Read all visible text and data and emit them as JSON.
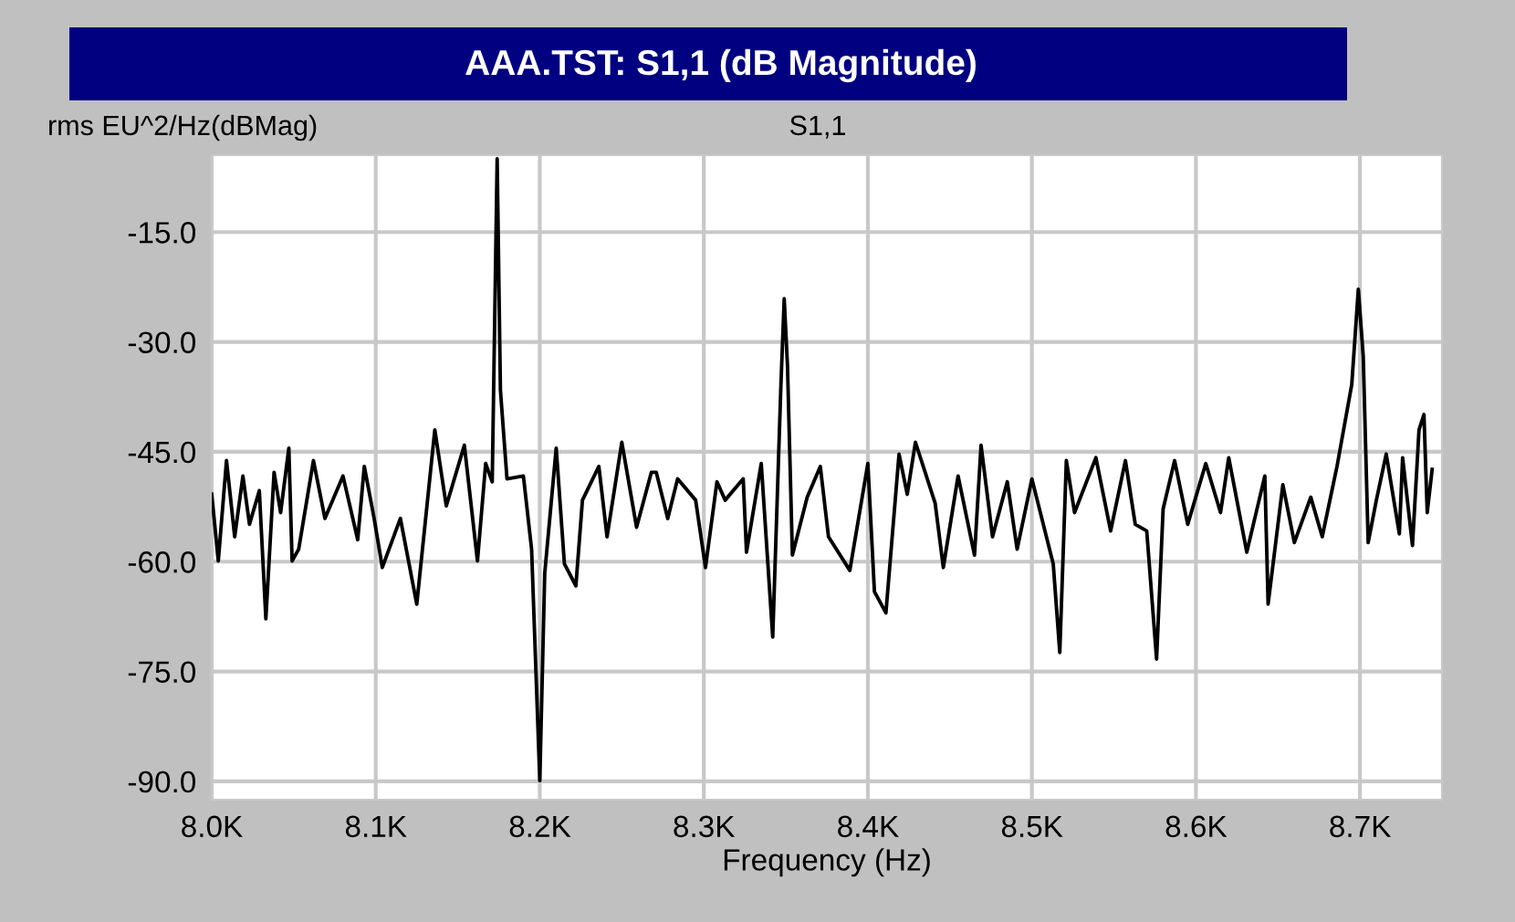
{
  "chart_data": {
    "type": "line",
    "title": "AAA.TST: S1,1 (dB Magnitude)",
    "subtitle": "S1,1",
    "ylabel": "rms EU^2/Hz(dBMag)",
    "xlabel": "Frequency (Hz)",
    "x": [
      8000,
      8004,
      8009,
      8014,
      8019,
      8023,
      8029,
      8033,
      8038,
      8042,
      8047,
      8049,
      8053,
      8062,
      8069,
      8080,
      8089,
      8093,
      8099,
      8104,
      8115,
      8125,
      8136,
      8143,
      8154,
      8162,
      8167,
      8171,
      8174,
      8176,
      8180,
      8190,
      8195,
      8200,
      8203,
      8210,
      8215,
      8222,
      8226,
      8236,
      8241,
      8250,
      8259,
      8268,
      8271,
      8278,
      8284,
      8295,
      8301,
      8308,
      8313,
      8324,
      8326,
      8335,
      8342,
      8347,
      8349,
      8351,
      8354,
      8363,
      8371,
      8376,
      8389,
      8400,
      8404,
      8411,
      8419,
      8424,
      8429,
      8441,
      8446,
      8455,
      8465,
      8469,
      8476,
      8485,
      8491,
      8500,
      8513,
      8517,
      8521,
      8526,
      8539,
      8548,
      8557,
      8563,
      8570,
      8576,
      8580,
      8587,
      8595,
      8606,
      8615,
      8620,
      8631,
      8642,
      8644,
      8653,
      8660,
      8670,
      8677,
      8686,
      8695,
      8699,
      8702,
      8705,
      8710,
      8716,
      8724,
      8726,
      8732,
      8736,
      8739,
      8741,
      8744
    ],
    "series": [
      {
        "color": "#000000",
        "values": [
          -50.8,
          -59.9,
          -46.2,
          -56.6,
          -48.3,
          -54.9,
          -50.3,
          -67.8,
          -47.8,
          -53.3,
          -44.5,
          -59.9,
          -58.3,
          -46.2,
          -54.1,
          -48.3,
          -57,
          -47,
          -54.1,
          -60.8,
          -54.1,
          -65.8,
          -42,
          -52.4,
          -44.1,
          -59.9,
          -46.6,
          -49.1,
          -5,
          -36.6,
          -48.7,
          -48.3,
          -58.3,
          -89.9,
          -61.6,
          -44.5,
          -60.3,
          -63.3,
          -51.6,
          -47,
          -56.6,
          -43.7,
          -55.3,
          -47.8,
          -47.8,
          -54.1,
          -48.7,
          -51.6,
          -60.8,
          -49.1,
          -51.6,
          -48.7,
          -58.7,
          -46.6,
          -70.3,
          -35.8,
          -24.1,
          -33.3,
          -59.1,
          -51.2,
          -47,
          -56.6,
          -61.2,
          -46.6,
          -64.1,
          -67,
          -45.3,
          -50.8,
          -43.7,
          -52,
          -60.8,
          -48.3,
          -59.1,
          -44.1,
          -56.6,
          -49.1,
          -58.3,
          -48.7,
          -60.3,
          -72.4,
          -46.2,
          -53.3,
          -45.8,
          -55.8,
          -46.2,
          -54.9,
          -55.8,
          -73.3,
          -52.8,
          -46.2,
          -54.9,
          -46.6,
          -53.3,
          -45.8,
          -58.7,
          -48.3,
          -65.8,
          -49.5,
          -57.4,
          -51.2,
          -56.6,
          -47,
          -35.8,
          -22.8,
          -32,
          -57.4,
          -51.6,
          -45.3,
          -56.2,
          -45.8,
          -57.8,
          -42,
          -39.9,
          -53.3,
          -47.4
        ]
      }
    ],
    "xlim": [
      8000,
      8750
    ],
    "ylim": [
      -92.5,
      -4.5
    ],
    "xticks": [
      {
        "value": 8000,
        "label": "8.0K"
      },
      {
        "value": 8100,
        "label": "8.1K"
      },
      {
        "value": 8200,
        "label": "8.2K"
      },
      {
        "value": 8300,
        "label": "8.3K"
      },
      {
        "value": 8400,
        "label": "8.4K"
      },
      {
        "value": 8500,
        "label": "8.5K"
      },
      {
        "value": 8600,
        "label": "8.6K"
      },
      {
        "value": 8700,
        "label": "8.7K"
      }
    ],
    "yticks": [
      {
        "value": -15,
        "label": "-15.0"
      },
      {
        "value": -30,
        "label": "-30.0"
      },
      {
        "value": -45,
        "label": "-45.0"
      },
      {
        "value": -60,
        "label": "-60.0"
      },
      {
        "value": -75,
        "label": "-75.0"
      },
      {
        "value": -90,
        "label": "-90.0"
      }
    ],
    "grid": true,
    "line_style": "solid"
  }
}
